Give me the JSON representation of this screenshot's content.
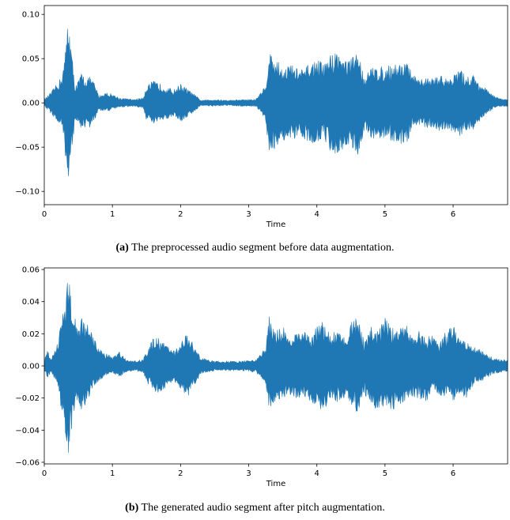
{
  "chart_data": [
    {
      "type": "line",
      "panel_label": "(a)",
      "caption": "The preprocessed audio segment before data augmentation.",
      "xlabel": "Time",
      "ylabel": "",
      "xlim": [
        0,
        6.8
      ],
      "ylim": [
        -0.115,
        0.11
      ],
      "xticks": [
        0,
        1,
        2,
        3,
        4,
        5,
        6
      ],
      "yticks": [
        0.1,
        0.05,
        0.0,
        -0.05,
        -0.1
      ],
      "ytick_labels": [
        "0.10",
        "0.05",
        "0.00",
        "−0.05",
        "−0.10"
      ],
      "grid": false,
      "color": "#1f77b4",
      "envelope": {
        "x": [
          0,
          0.1,
          0.25,
          0.3,
          0.35,
          0.4,
          0.45,
          0.5,
          0.55,
          0.6,
          0.65,
          0.7,
          0.75,
          0.8,
          0.9,
          1.0,
          1.1,
          1.3,
          1.45,
          1.5,
          1.6,
          1.7,
          1.8,
          1.9,
          2.0,
          2.1,
          2.2,
          2.3,
          2.5,
          2.7,
          2.9,
          3.1,
          3.25,
          3.3,
          3.4,
          3.5,
          3.6,
          3.7,
          3.8,
          3.9,
          4.0,
          4.1,
          4.2,
          4.3,
          4.4,
          4.5,
          4.6,
          4.7,
          4.8,
          4.9,
          5.0,
          5.1,
          5.2,
          5.3,
          5.4,
          5.5,
          5.6,
          5.7,
          5.8,
          5.9,
          6.0,
          6.1,
          6.2,
          6.3,
          6.4,
          6.5,
          6.6,
          6.7,
          6.8
        ],
        "upper": [
          0.004,
          0.012,
          0.03,
          0.05,
          0.103,
          0.06,
          0.02,
          0.025,
          0.035,
          0.028,
          0.03,
          0.028,
          0.02,
          0.008,
          0.012,
          0.01,
          0.006,
          0.004,
          0.006,
          0.02,
          0.025,
          0.022,
          0.018,
          0.015,
          0.022,
          0.016,
          0.01,
          0.003,
          0.004,
          0.003,
          0.004,
          0.004,
          0.02,
          0.06,
          0.05,
          0.04,
          0.045,
          0.04,
          0.038,
          0.045,
          0.05,
          0.045,
          0.055,
          0.06,
          0.05,
          0.05,
          0.06,
          0.03,
          0.04,
          0.042,
          0.04,
          0.045,
          0.045,
          0.048,
          0.035,
          0.025,
          0.03,
          0.028,
          0.032,
          0.028,
          0.032,
          0.038,
          0.03,
          0.032,
          0.022,
          0.015,
          0.008,
          0.005,
          0.004
        ],
        "lower": [
          -0.004,
          -0.012,
          -0.03,
          -0.05,
          -0.103,
          -0.06,
          -0.02,
          -0.025,
          -0.03,
          -0.028,
          -0.03,
          -0.025,
          -0.018,
          -0.008,
          -0.01,
          -0.008,
          -0.005,
          -0.004,
          -0.006,
          -0.02,
          -0.025,
          -0.022,
          -0.018,
          -0.015,
          -0.022,
          -0.016,
          -0.01,
          -0.003,
          -0.004,
          -0.003,
          -0.004,
          -0.004,
          -0.02,
          -0.06,
          -0.05,
          -0.042,
          -0.045,
          -0.042,
          -0.04,
          -0.045,
          -0.045,
          -0.04,
          -0.055,
          -0.06,
          -0.05,
          -0.05,
          -0.06,
          -0.03,
          -0.045,
          -0.04,
          -0.04,
          -0.045,
          -0.048,
          -0.05,
          -0.03,
          -0.025,
          -0.028,
          -0.028,
          -0.032,
          -0.03,
          -0.035,
          -0.04,
          -0.03,
          -0.035,
          -0.02,
          -0.012,
          -0.006,
          -0.004,
          -0.004
        ]
      }
    },
    {
      "type": "line",
      "panel_label": "(b)",
      "caption": "The generated audio segment after pitch augmentation.",
      "xlabel": "Time",
      "ylabel": "",
      "xlim": [
        0,
        6.8
      ],
      "ylim": [
        -0.061,
        0.061
      ],
      "xticks": [
        0,
        1,
        2,
        3,
        4,
        5,
        6
      ],
      "yticks": [
        0.06,
        0.04,
        0.02,
        0.0,
        -0.02,
        -0.04,
        -0.06
      ],
      "ytick_labels": [
        "0.06",
        "0.04",
        "0.02",
        "0.00",
        "−0.02",
        "−0.04",
        "−0.06"
      ],
      "grid": false,
      "color": "#1f77b4",
      "envelope": {
        "x": [
          0,
          0.05,
          0.1,
          0.2,
          0.25,
          0.3,
          0.35,
          0.4,
          0.45,
          0.5,
          0.55,
          0.6,
          0.7,
          0.8,
          0.9,
          1.0,
          1.1,
          1.2,
          1.3,
          1.45,
          1.5,
          1.6,
          1.7,
          1.8,
          1.9,
          2.0,
          2.1,
          2.2,
          2.3,
          2.5,
          2.7,
          2.9,
          3.1,
          3.25,
          3.3,
          3.4,
          3.5,
          3.6,
          3.7,
          3.8,
          3.9,
          4.0,
          4.1,
          4.2,
          4.3,
          4.4,
          4.5,
          4.6,
          4.7,
          4.8,
          4.9,
          5.0,
          5.1,
          5.2,
          5.3,
          5.4,
          5.5,
          5.6,
          5.7,
          5.8,
          5.9,
          6.0,
          6.1,
          6.2,
          6.3,
          6.4,
          6.5,
          6.6,
          6.7,
          6.8
        ],
        "upper": [
          0.004,
          0.01,
          0.004,
          0.015,
          0.03,
          0.04,
          0.055,
          0.045,
          0.03,
          0.025,
          0.03,
          0.03,
          0.02,
          0.012,
          0.008,
          0.006,
          0.01,
          0.004,
          0.003,
          0.004,
          0.01,
          0.018,
          0.017,
          0.013,
          0.01,
          0.014,
          0.022,
          0.012,
          0.005,
          0.003,
          0.003,
          0.003,
          0.004,
          0.012,
          0.032,
          0.022,
          0.025,
          0.018,
          0.02,
          0.022,
          0.018,
          0.025,
          0.028,
          0.02,
          0.022,
          0.018,
          0.028,
          0.03,
          0.015,
          0.025,
          0.022,
          0.03,
          0.025,
          0.022,
          0.028,
          0.018,
          0.022,
          0.018,
          0.02,
          0.015,
          0.022,
          0.025,
          0.02,
          0.015,
          0.012,
          0.01,
          0.007,
          0.005,
          0.004,
          0.004
        ],
        "lower": [
          -0.004,
          -0.008,
          -0.004,
          -0.012,
          -0.028,
          -0.04,
          -0.056,
          -0.045,
          -0.028,
          -0.022,
          -0.03,
          -0.025,
          -0.015,
          -0.01,
          -0.006,
          -0.005,
          -0.007,
          -0.004,
          -0.003,
          -0.004,
          -0.01,
          -0.016,
          -0.018,
          -0.013,
          -0.01,
          -0.015,
          -0.02,
          -0.012,
          -0.005,
          -0.003,
          -0.003,
          -0.003,
          -0.004,
          -0.012,
          -0.027,
          -0.022,
          -0.02,
          -0.02,
          -0.022,
          -0.018,
          -0.022,
          -0.025,
          -0.032,
          -0.02,
          -0.024,
          -0.02,
          -0.024,
          -0.03,
          -0.018,
          -0.024,
          -0.028,
          -0.025,
          -0.028,
          -0.025,
          -0.022,
          -0.02,
          -0.02,
          -0.025,
          -0.015,
          -0.018,
          -0.02,
          -0.022,
          -0.018,
          -0.02,
          -0.012,
          -0.01,
          -0.007,
          -0.005,
          -0.004,
          -0.004
        ]
      }
    }
  ]
}
